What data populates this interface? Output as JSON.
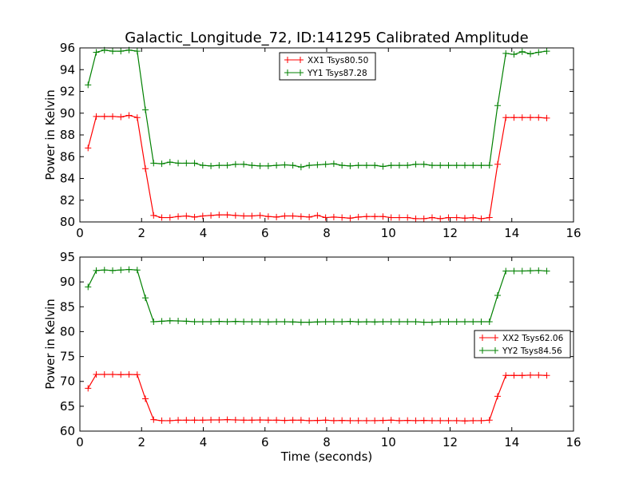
{
  "chart_data": [
    {
      "type": "line",
      "title": "Galactic_Longitude_72, ID:141295 Calibrated Amplitude",
      "xlabel": "",
      "ylabel": "Power in Kelvin",
      "xlim": [
        0,
        16
      ],
      "ylim": [
        80,
        96
      ],
      "xticks": [
        "0",
        "2",
        "4",
        "6",
        "8",
        "10",
        "12",
        "14",
        "16"
      ],
      "yticks": [
        "80",
        "82",
        "84",
        "86",
        "88",
        "90",
        "92",
        "94",
        "96"
      ],
      "legend_position": "upper-center",
      "x_step": 0.2655,
      "series": [
        {
          "name": "XX1 Tsys80.50",
          "color": "#ff0000",
          "values": [
            86.8,
            89.7,
            89.7,
            89.7,
            89.65,
            89.8,
            89.6,
            84.9,
            80.6,
            80.4,
            80.4,
            80.5,
            80.55,
            80.45,
            80.55,
            80.6,
            80.65,
            80.65,
            80.6,
            80.55,
            80.55,
            80.6,
            80.5,
            80.45,
            80.55,
            80.55,
            80.5,
            80.45,
            80.6,
            80.4,
            80.45,
            80.4,
            80.35,
            80.45,
            80.5,
            80.5,
            80.5,
            80.4,
            80.4,
            80.4,
            80.3,
            80.3,
            80.4,
            80.3,
            80.4,
            80.4,
            80.35,
            80.4,
            80.3,
            80.4,
            85.3,
            89.6,
            89.6,
            89.6,
            89.6,
            89.6,
            89.55
          ]
        },
        {
          "name": "YY1 Tsys87.28",
          "color": "#008000",
          "values": [
            92.6,
            95.6,
            95.8,
            95.7,
            95.7,
            95.8,
            95.7,
            90.3,
            85.4,
            85.35,
            85.5,
            85.4,
            85.4,
            85.4,
            85.2,
            85.15,
            85.2,
            85.2,
            85.3,
            85.3,
            85.2,
            85.15,
            85.15,
            85.2,
            85.25,
            85.2,
            85.05,
            85.2,
            85.25,
            85.3,
            85.35,
            85.2,
            85.15,
            85.2,
            85.2,
            85.2,
            85.1,
            85.2,
            85.2,
            85.2,
            85.3,
            85.3,
            85.2,
            85.2,
            85.2,
            85.2,
            85.2,
            85.2,
            85.2,
            85.2,
            90.7,
            95.5,
            95.4,
            95.65,
            95.45,
            95.6,
            95.7
          ]
        }
      ]
    },
    {
      "type": "line",
      "title": "",
      "xlabel": "Time (seconds)",
      "ylabel": "Power in Kelvin",
      "xlim": [
        0,
        16
      ],
      "ylim": [
        60,
        95
      ],
      "xticks": [
        "0",
        "2",
        "4",
        "6",
        "8",
        "10",
        "12",
        "14",
        "16"
      ],
      "yticks": [
        "60",
        "65",
        "70",
        "75",
        "80",
        "85",
        "90",
        "95"
      ],
      "legend_position": "center-right",
      "x_step": 0.2655,
      "series": [
        {
          "name": "XX2 Tsys62.06",
          "color": "#ff0000",
          "values": [
            68.6,
            71.4,
            71.4,
            71.4,
            71.35,
            71.4,
            71.35,
            66.5,
            62.3,
            62.1,
            62.1,
            62.2,
            62.2,
            62.2,
            62.2,
            62.25,
            62.25,
            62.3,
            62.25,
            62.2,
            62.2,
            62.25,
            62.2,
            62.2,
            62.15,
            62.2,
            62.2,
            62.1,
            62.15,
            62.2,
            62.1,
            62.15,
            62.1,
            62.1,
            62.1,
            62.1,
            62.15,
            62.2,
            62.1,
            62.15,
            62.1,
            62.15,
            62.1,
            62.1,
            62.1,
            62.1,
            62.05,
            62.1,
            62.1,
            62.2,
            67.0,
            71.2,
            71.2,
            71.2,
            71.25,
            71.25,
            71.2
          ]
        },
        {
          "name": "YY2 Tsys84.56",
          "color": "#008000",
          "values": [
            89.0,
            92.3,
            92.4,
            92.3,
            92.4,
            92.5,
            92.4,
            86.8,
            82.0,
            82.1,
            82.2,
            82.15,
            82.1,
            82.0,
            82.0,
            82.0,
            82.05,
            82.0,
            82.05,
            82.0,
            82.0,
            82.0,
            81.95,
            82.0,
            82.0,
            81.95,
            81.9,
            81.9,
            81.95,
            82.0,
            82.0,
            82.0,
            82.05,
            81.95,
            82.0,
            81.95,
            82.0,
            82.0,
            82.0,
            82.0,
            82.0,
            81.9,
            81.9,
            82.0,
            82.0,
            82.0,
            82.0,
            82.0,
            82.0,
            82.0,
            87.3,
            92.2,
            92.2,
            92.2,
            92.25,
            92.3,
            92.2
          ]
        }
      ]
    }
  ]
}
